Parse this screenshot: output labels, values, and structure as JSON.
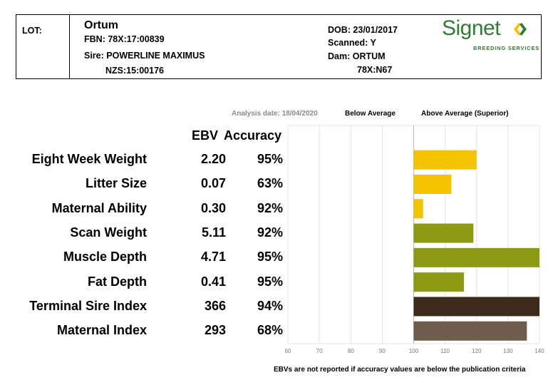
{
  "header": {
    "lot_label": "LOT:",
    "name": "Ortum",
    "fbn": "FBN: 78X:17:00839",
    "sire": "Sire: POWERLINE MAXIMUS",
    "sire_id": "NZS:15:00176",
    "dob": "DOB: 23/01/2017",
    "scanned": "Scanned: Y",
    "dam": "Dam: ORTUM",
    "dam_id": "78X:N67"
  },
  "logo": {
    "word": "Signet",
    "subtitle": "BREEDING SERVICES",
    "color": "#2e7d32"
  },
  "top_labels": {
    "analysis_date": "Analysis date: 18/04/2020",
    "below_average": "Below Average",
    "above_average": "Above Average (Superior)"
  },
  "columns": {
    "ebv": "EBV",
    "accuracy": "Accuracy"
  },
  "footer": "EBVs are not reported if accuracy values are below the publication criteria",
  "chart_data": {
    "type": "bar",
    "orientation": "horizontal",
    "categories": [
      "Eight Week Weight",
      "Litter Size",
      "Maternal Ability",
      "Scan Weight",
      "Muscle Depth",
      "Fat Depth",
      "Terminal Sire Index",
      "Maternal Index"
    ],
    "ebv": [
      "2.20",
      "0.07",
      "0.30",
      "5.11",
      "4.71",
      "0.41",
      "366",
      "293"
    ],
    "accuracy": [
      "95%",
      "63%",
      "92%",
      "92%",
      "95%",
      "95%",
      "94%",
      "68%"
    ],
    "values": [
      120,
      112,
      103,
      119,
      140,
      116,
      140,
      136
    ],
    "baseline": 100,
    "xlim": [
      60,
      140
    ],
    "xticks": [
      60,
      70,
      80,
      90,
      100,
      110,
      120,
      130,
      140
    ],
    "grid": true,
    "colors": [
      "#f5c400",
      "#f5c400",
      "#f5c400",
      "#8c9a14",
      "#8c9a14",
      "#8c9a14",
      "#3c2a1a",
      "#6e5c4c"
    ]
  }
}
